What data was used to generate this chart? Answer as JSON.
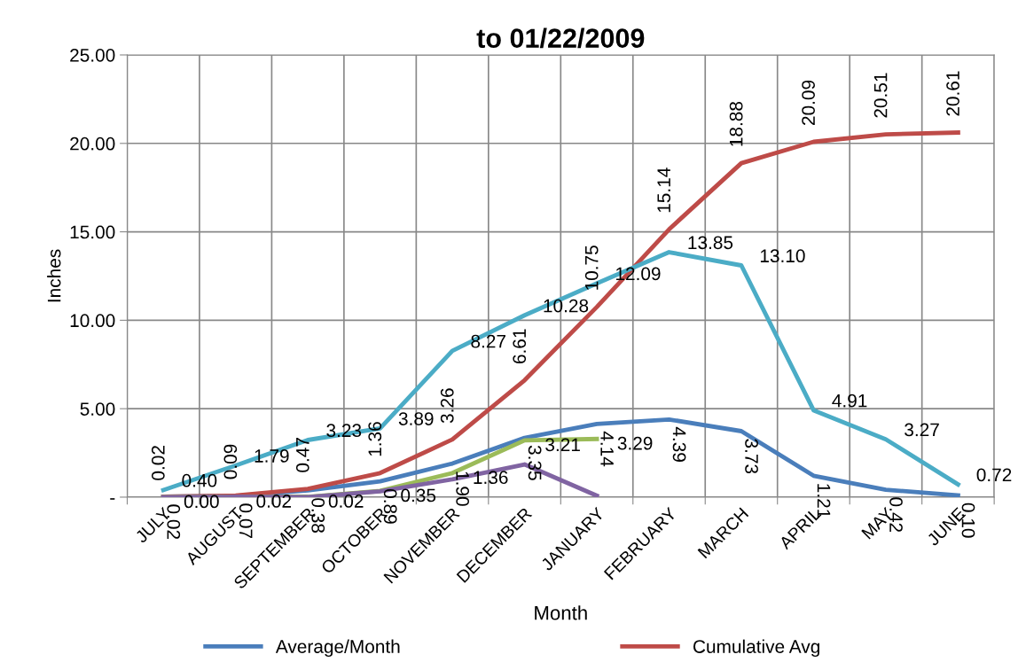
{
  "chart_data": {
    "type": "line",
    "title": "to 01/22/2009",
    "xlabel": "Month",
    "ylabel": "Inches",
    "categories": [
      "JULY",
      "AUGUST",
      "SEPTEMBER",
      "OCTOBER",
      "NOVEMBER",
      "DECEMBER",
      "JANUARY",
      "FEBRUARY",
      "MARCH",
      "APRIL",
      "MAY",
      "JUNE"
    ],
    "ylim": [
      0,
      25
    ],
    "yticks": [
      {
        "value": 0,
        "label": "-"
      },
      {
        "value": 5,
        "label": "5.00"
      },
      {
        "value": 10,
        "label": "10.00"
      },
      {
        "value": 15,
        "label": "15.00"
      },
      {
        "value": 20,
        "label": "20.00"
      },
      {
        "value": 25,
        "label": "25.00"
      }
    ],
    "grid": true,
    "legend": "bottom",
    "marker": "none",
    "line_style": "solid",
    "series": [
      {
        "name": "Average/Month",
        "color": "#4a7ebb",
        "values": [
          0.02,
          0.07,
          0.38,
          0.89,
          1.9,
          3.35,
          4.14,
          4.39,
          3.73,
          1.21,
          0.42,
          0.1
        ],
        "value_labels": [
          "0.02",
          "0.07",
          "0.38",
          "0.89",
          "1.90",
          "3.35",
          "4.14",
          "4.39",
          "3.73",
          "1.21",
          "0.42",
          "0.10"
        ]
      },
      {
        "name": "Cumulative Avg",
        "color": "#be4b48",
        "values": [
          0.02,
          0.09,
          0.47,
          1.36,
          3.26,
          6.61,
          10.75,
          15.14,
          18.88,
          20.09,
          20.51,
          20.61
        ],
        "value_labels": [
          "0.02",
          "0.09",
          "0.47",
          "1.36",
          "3.26",
          "6.61",
          "10.75",
          "15.14",
          "18.88",
          "20.09",
          "20.51",
          "20.61"
        ]
      },
      {
        "color": "#4bacc6",
        "values": [
          0.4,
          1.79,
          3.23,
          3.89,
          8.27,
          10.28,
          12.09,
          13.85,
          13.1,
          4.91,
          3.27,
          0.72
        ],
        "value_labels": [
          "0.40",
          "1.79",
          "3.23",
          "3.89",
          "8.27",
          "10.28",
          "12.09",
          "13.85",
          "13.10",
          "4.91",
          "3.27",
          "0.72"
        ]
      },
      {
        "color": "#9bbb59",
        "values": [
          0.0,
          0.02,
          0.02,
          0.35,
          1.36,
          3.21,
          3.29,
          null,
          null,
          null,
          null,
          null
        ],
        "value_labels": [
          "0.00",
          "0.02",
          "0.02",
          "0.35",
          "1.36",
          "3.21",
          "3.29",
          null,
          null,
          null,
          null,
          null
        ]
      },
      {
        "color": "#8064a2",
        "values": [
          0.0,
          0.02,
          0.0,
          0.33,
          1.01,
          1.85,
          0.08,
          null,
          null,
          null,
          null,
          null
        ]
      }
    ]
  }
}
